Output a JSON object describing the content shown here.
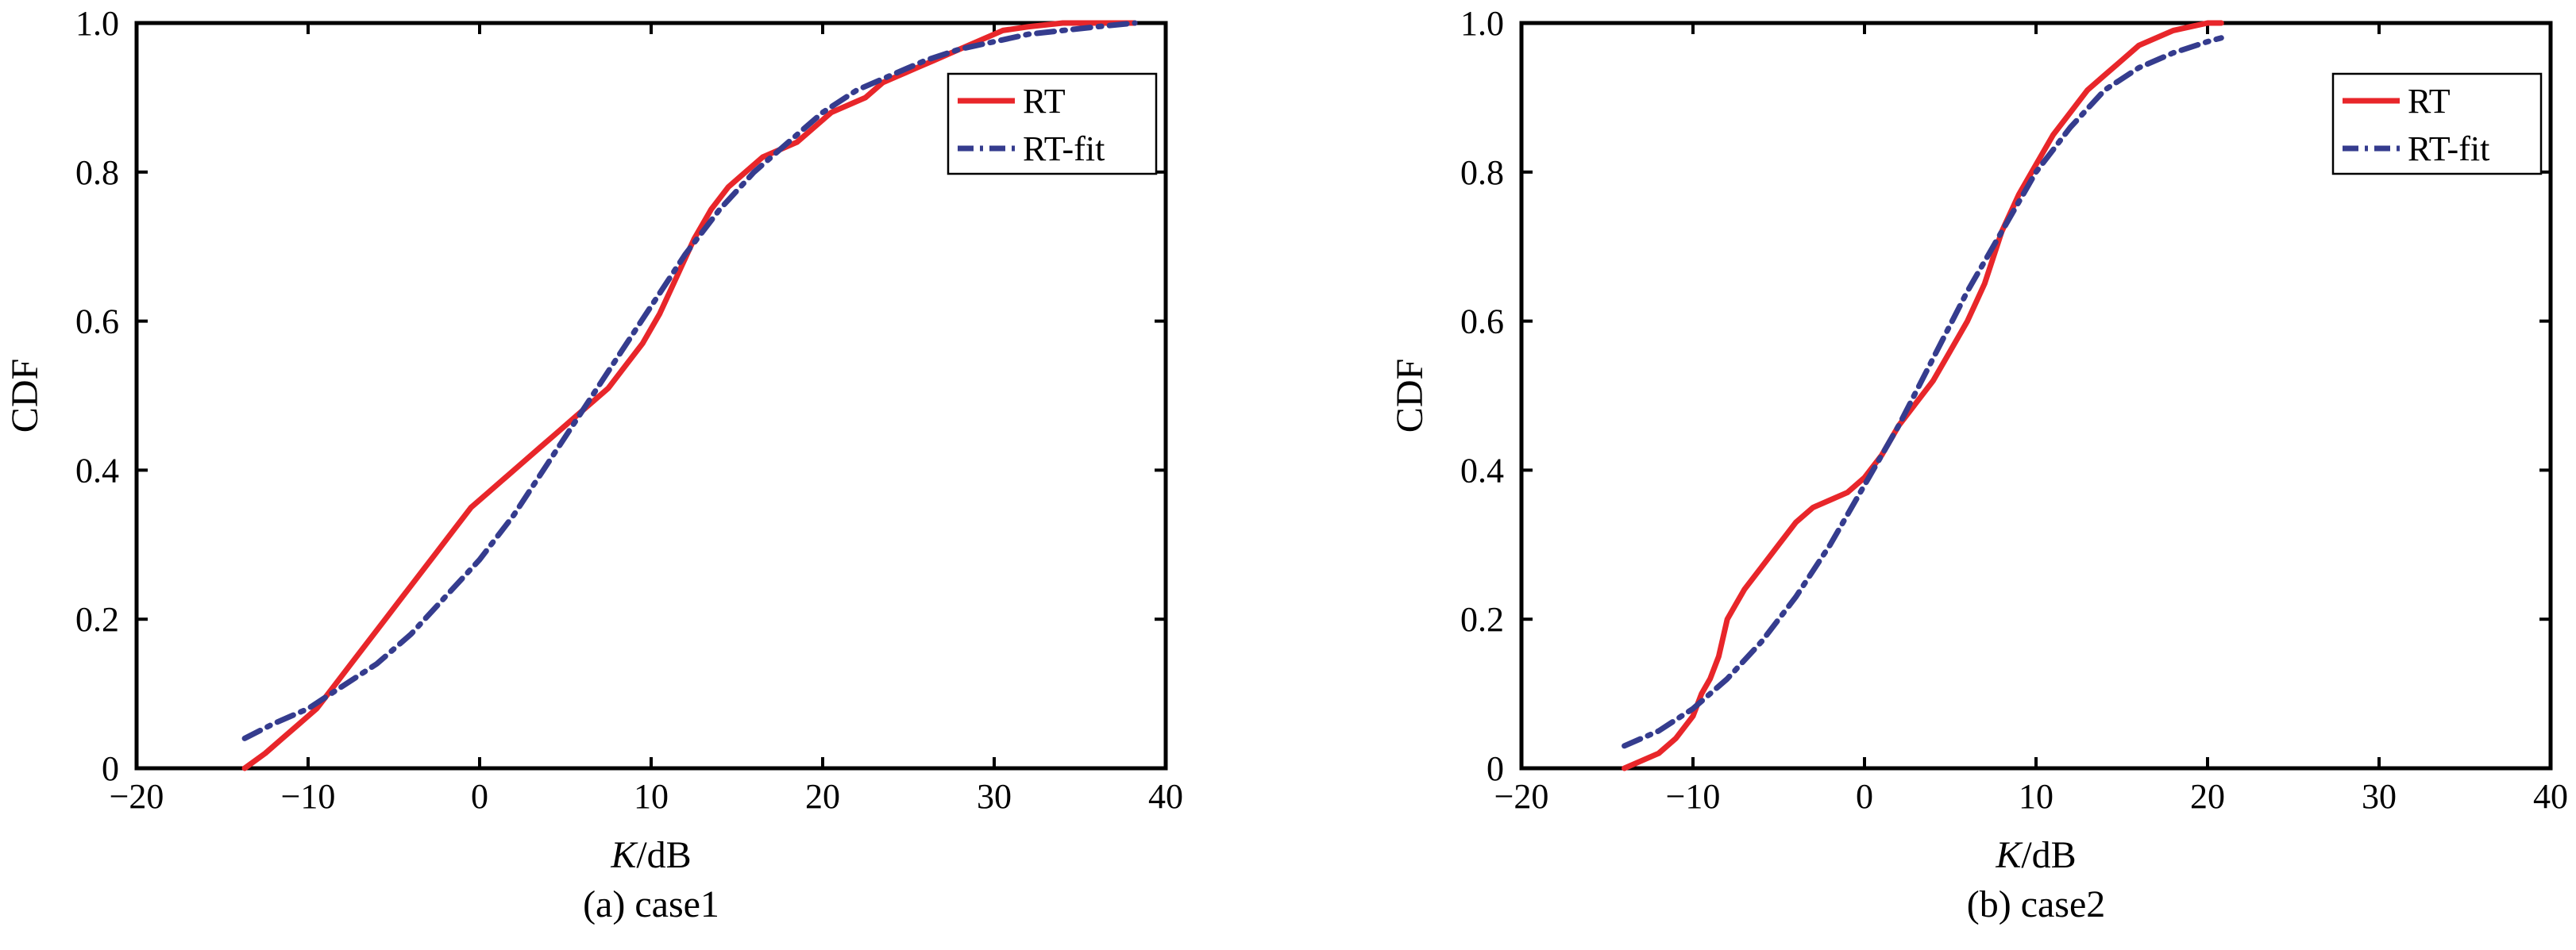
{
  "chart_data": [
    {
      "type": "line",
      "caption": "(a) case1",
      "xlabel_italic": "K",
      "xlabel_rest": "/dB",
      "ylabel": "CDF",
      "xlim": [
        -20,
        40
      ],
      "ylim": [
        0,
        1
      ],
      "xticks": [
        -20,
        -10,
        0,
        10,
        20,
        30,
        40
      ],
      "yticks": [
        0,
        0.2,
        0.4,
        0.6,
        0.8,
        1.0
      ],
      "ytick_labels": [
        "0",
        "0.2",
        "0.4",
        "0.6",
        "0.8",
        "1.0"
      ],
      "xtick_labels": [
        "−20",
        "−10",
        "0",
        "10",
        "20",
        "30",
        "40"
      ],
      "grid": false,
      "legend_position": "top-right",
      "series": [
        {
          "name": "RT",
          "color": "#e8262a",
          "style": "solid",
          "x": [
            -13.7,
            -12.5,
            -11.5,
            -10.5,
            -9.5,
            -8.5,
            -7.5,
            -6.5,
            -5.5,
            -4.5,
            -3.5,
            -2.5,
            -1.5,
            -0.5,
            0.5,
            1.5,
            2.5,
            3.5,
            4.5,
            5.5,
            6.5,
            7.5,
            8.5,
            9.5,
            10.5,
            11.5,
            12.5,
            13.5,
            14.5,
            15.5,
            16.5,
            17.5,
            18.5,
            19.5,
            20.5,
            21.5,
            22.5,
            23.5,
            24.5,
            25.5,
            26.5,
            27.5,
            28.5,
            29.5,
            30.5,
            32,
            34,
            36,
            38.2
          ],
          "y": [
            0.0,
            0.02,
            0.04,
            0.06,
            0.08,
            0.11,
            0.14,
            0.17,
            0.2,
            0.23,
            0.26,
            0.29,
            0.32,
            0.35,
            0.37,
            0.39,
            0.41,
            0.43,
            0.45,
            0.47,
            0.49,
            0.51,
            0.54,
            0.57,
            0.61,
            0.66,
            0.71,
            0.75,
            0.78,
            0.8,
            0.82,
            0.83,
            0.84,
            0.86,
            0.88,
            0.89,
            0.9,
            0.92,
            0.93,
            0.94,
            0.95,
            0.96,
            0.97,
            0.98,
            0.99,
            0.995,
            1.0,
            1.0,
            1.0
          ]
        },
        {
          "name": "RT-fit",
          "color": "#353c8e",
          "style": "dashdot",
          "x": [
            -13.7,
            -12,
            -10,
            -8,
            -6,
            -4,
            -2,
            0,
            2,
            4,
            6,
            8,
            10,
            12,
            14,
            16,
            18,
            20,
            22,
            24,
            26,
            28,
            30,
            32,
            34,
            36,
            38.2
          ],
          "y": [
            0.04,
            0.06,
            0.08,
            0.11,
            0.14,
            0.18,
            0.23,
            0.28,
            0.34,
            0.41,
            0.48,
            0.55,
            0.62,
            0.69,
            0.75,
            0.8,
            0.84,
            0.88,
            0.91,
            0.93,
            0.95,
            0.965,
            0.975,
            0.985,
            0.99,
            0.995,
            1.0
          ]
        }
      ]
    },
    {
      "type": "line",
      "caption": "(b) case2",
      "xlabel_italic": "K",
      "xlabel_rest": "/dB",
      "ylabel": "CDF",
      "xlim": [
        -20,
        40
      ],
      "ylim": [
        0,
        1
      ],
      "xticks": [
        -20,
        -10,
        0,
        10,
        20,
        30,
        40
      ],
      "yticks": [
        0,
        0.2,
        0.4,
        0.6,
        0.8,
        1.0
      ],
      "ytick_labels": [
        "0",
        "0.2",
        "0.4",
        "0.6",
        "0.8",
        "1.0"
      ],
      "xtick_labels": [
        "−20",
        "−10",
        "0",
        "10",
        "20",
        "30",
        "40"
      ],
      "grid": false,
      "legend_position": "top-right",
      "series": [
        {
          "name": "RT",
          "color": "#e8262a",
          "style": "solid",
          "x": [
            -14,
            -13,
            -12,
            -11,
            -10,
            -9.5,
            -9,
            -8.5,
            -8,
            -7.5,
            -7,
            -6,
            -5,
            -4,
            -3,
            -2,
            -1,
            0,
            1,
            2,
            3,
            4,
            5,
            6,
            7,
            8,
            9,
            10,
            11,
            12,
            13,
            14,
            15,
            16,
            17,
            18,
            19,
            20,
            20.8
          ],
          "y": [
            0.0,
            0.01,
            0.02,
            0.04,
            0.07,
            0.1,
            0.12,
            0.15,
            0.2,
            0.22,
            0.24,
            0.27,
            0.3,
            0.33,
            0.35,
            0.36,
            0.37,
            0.39,
            0.42,
            0.46,
            0.49,
            0.52,
            0.56,
            0.6,
            0.65,
            0.72,
            0.77,
            0.81,
            0.85,
            0.88,
            0.91,
            0.93,
            0.95,
            0.97,
            0.98,
            0.99,
            0.995,
            1.0,
            1.0
          ]
        },
        {
          "name": "RT-fit",
          "color": "#353c8e",
          "style": "dashdot",
          "x": [
            -14,
            -12,
            -10,
            -8,
            -6,
            -4,
            -2,
            0,
            2,
            4,
            6,
            8,
            10,
            12,
            14,
            16,
            18,
            20,
            20.8
          ],
          "y": [
            0.03,
            0.05,
            0.08,
            0.12,
            0.17,
            0.23,
            0.3,
            0.38,
            0.46,
            0.55,
            0.64,
            0.72,
            0.8,
            0.86,
            0.91,
            0.94,
            0.96,
            0.975,
            0.98
          ]
        }
      ]
    }
  ]
}
